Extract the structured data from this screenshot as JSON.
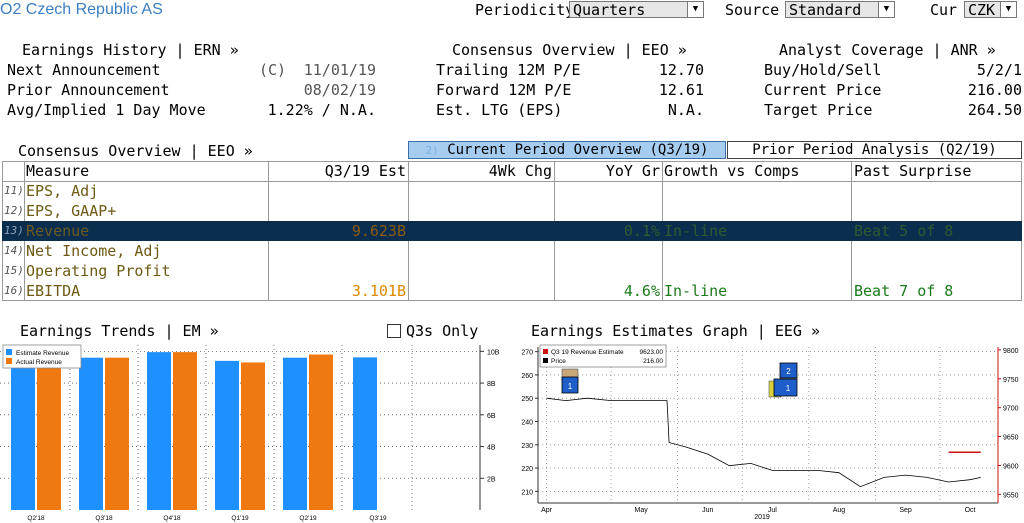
{
  "header": {
    "security": "O2 Czech Republic AS",
    "periodicity_label": "Periodicity",
    "periodicity_value": "Quarters",
    "source_label": "Source",
    "source_value": "Standard",
    "currency_label": "Cur",
    "currency_value": "CZK"
  },
  "earnings_history": {
    "title": "Earnings History | ERN »",
    "rows": [
      {
        "label": "Next Announcement",
        "flag": "(C)",
        "value": "11/01/19"
      },
      {
        "label": "Prior Announcement",
        "flag": "",
        "value": "08/02/19"
      },
      {
        "label": "Avg/Implied 1 Day Move",
        "flag": "",
        "value": "1.22% / N.A."
      }
    ]
  },
  "consensus_overview": {
    "title": "Consensus Overview | EEO »",
    "rows": [
      {
        "label": "Trailing 12M P/E",
        "value": "12.70"
      },
      {
        "label": "Forward 12M P/E",
        "value": "12.61"
      },
      {
        "label": "Est. LTG (EPS)",
        "value": "N.A."
      }
    ]
  },
  "analyst_coverage": {
    "title": "Analyst Coverage | ANR »",
    "rows": [
      {
        "label": "Buy/Hold/Sell",
        "value": "5/2/1"
      },
      {
        "label": "Current Price",
        "value": "216.00"
      },
      {
        "label": "Target Price",
        "value": "264.50"
      }
    ]
  },
  "estimates_table": {
    "title": "Consensus Overview | EEO »",
    "tab_active_number": "2)",
    "tab_active": "Current Period Overview (Q3/19)",
    "tab_inactive": "Prior Period Analysis (Q2/19)",
    "columns": [
      "Measure",
      "Q3/19 Est",
      "4Wk Chg",
      "YoY Gr",
      "Growth vs Comps",
      "Past Surprise"
    ],
    "rows": [
      {
        "num": "11)",
        "measure": "EPS, Adj",
        "est": "",
        "chg": "",
        "yoy": "",
        "comps": "",
        "surprise": ""
      },
      {
        "num": "12)",
        "measure": "EPS, GAAP+",
        "est": "",
        "chg": "",
        "yoy": "",
        "comps": "",
        "surprise": ""
      },
      {
        "num": "13)",
        "measure": "Revenue",
        "est": "9.623B",
        "chg": "",
        "yoy": "0.1%",
        "comps": "In-line",
        "surprise": "Beat 5 of 8"
      },
      {
        "num": "14)",
        "measure": "Net Income, Adj",
        "est": "",
        "chg": "",
        "yoy": "",
        "comps": "",
        "surprise": ""
      },
      {
        "num": "15)",
        "measure": "Operating Profit",
        "est": "",
        "chg": "",
        "yoy": "",
        "comps": "",
        "surprise": ""
      },
      {
        "num": "16)",
        "measure": "EBITDA",
        "est": "3.101B",
        "chg": "",
        "yoy": "4.6%",
        "comps": "In-line",
        "surprise": "Beat 7 of 8"
      }
    ]
  },
  "earnings_trends": {
    "title": "Earnings Trends | EM »",
    "q3s_only_label": "Q3s Only",
    "colors": {
      "estimate": "#1e90ff",
      "actual": "#f07810"
    }
  },
  "earnings_estimates_graph": {
    "title": "Earnings Estimates Graph | EEG »",
    "legend": [
      {
        "label": "Q3 19 Revenue Estimate",
        "value": "9623.00",
        "color": "#cc1111"
      },
      {
        "label": "Price",
        "value": "216.00",
        "color": "#000000"
      }
    ],
    "markers": [
      "1",
      "2",
      "1"
    ],
    "year_label": "2019"
  },
  "chart_data": [
    {
      "type": "bar",
      "categories": [
        "Q2'18",
        "Q3'18",
        "Q4'18",
        "Q1'19",
        "Q2'19",
        "Q3'19"
      ],
      "series": [
        {
          "name": "Estimate Revenue",
          "values": [
            9.25,
            9.6,
            9.95,
            9.4,
            9.6,
            9.62
          ]
        },
        {
          "name": "Actual Revenue",
          "values": [
            9.25,
            9.6,
            9.95,
            9.3,
            9.8,
            null
          ]
        }
      ],
      "y_ticks": [
        "2B",
        "4B",
        "6B",
        "8B",
        "10B"
      ],
      "ylim": [
        0,
        10.4
      ],
      "legend_position": "top-left",
      "grid": true
    },
    {
      "type": "line",
      "x_ticks": [
        "Apr",
        "May",
        "Jun",
        "Jul",
        "Aug",
        "Sep",
        "Oct"
      ],
      "xlabel": "2019",
      "left_axis": {
        "ticks": [
          210,
          220,
          230,
          240,
          250,
          260,
          270
        ],
        "range": [
          205,
          272
        ]
      },
      "right_axis": {
        "ticks": [
          9550,
          9600,
          9650,
          9700,
          9750,
          9800
        ],
        "range": [
          9535,
          9805
        ]
      },
      "series": [
        {
          "name": "Price",
          "axis": "left",
          "x": [
            "2019-04-01",
            "2019-04-10",
            "2019-04-20",
            "2019-05-01",
            "2019-05-15",
            "2019-05-27",
            "2019-05-28",
            "2019-06-05",
            "2019-06-15",
            "2019-06-25",
            "2019-07-05",
            "2019-07-15",
            "2019-07-25",
            "2019-08-05",
            "2019-08-15",
            "2019-08-25",
            "2019-09-05",
            "2019-09-15",
            "2019-09-25",
            "2019-10-05",
            "2019-10-15",
            "2019-10-20"
          ],
          "values": [
            250,
            249,
            250,
            249,
            249,
            249,
            231,
            229,
            226,
            221,
            222,
            219,
            219,
            219,
            218,
            212,
            216,
            217,
            216,
            214,
            215,
            216
          ]
        },
        {
          "name": "Q3 19 Revenue Estimate",
          "axis": "right",
          "x": [
            "2019-10-05",
            "2019-10-20"
          ],
          "values": [
            9623,
            9623
          ]
        }
      ],
      "grid": true
    }
  ]
}
